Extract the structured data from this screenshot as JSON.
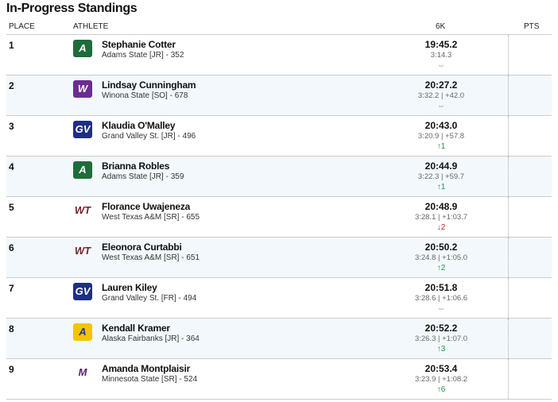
{
  "title": "In-Progress Standings",
  "columns": {
    "place": "PLACE",
    "athlete": "ATHLETE",
    "split": "6K",
    "pts": "PTS"
  },
  "colors": {
    "up": "#1a9a4a",
    "down": "#cc2222",
    "same": "#999999"
  },
  "rows": [
    {
      "place": "1",
      "name": "Stephanie Cotter",
      "team": "Adams State [JR] - 352",
      "time": "19:45.2",
      "split": "3:14.3",
      "move": "⇔",
      "dir": "same",
      "logo": "adams-state-logo"
    },
    {
      "place": "2",
      "name": "Lindsay Cunningham",
      "team": "Winona State [SO] - 678",
      "time": "20:27.2",
      "split": "3:32.2 | +42.0",
      "move": "⇔",
      "dir": "same",
      "logo": "winona-state-logo"
    },
    {
      "place": "3",
      "name": "Klaudia O'Malley",
      "team": "Grand Valley St. [JR] - 496",
      "time": "20:43.0",
      "split": "3:20.9 | +57.8",
      "move": "↑1",
      "dir": "up",
      "logo": "grand-valley-logo"
    },
    {
      "place": "4",
      "name": "Brianna Robles",
      "team": "Adams State [JR] - 359",
      "time": "20:44.9",
      "split": "3:22.3 | +59.7",
      "move": "↑1",
      "dir": "up",
      "logo": "adams-state-logo"
    },
    {
      "place": "5",
      "name": "Florance Uwajeneza",
      "team": "West Texas A&M [SR] - 655",
      "time": "20:48.9",
      "split": "3:28.1 | +1:03.7",
      "move": "↓2",
      "dir": "down",
      "logo": "west-texas-logo"
    },
    {
      "place": "6",
      "name": "Eleonora Curtabbi",
      "team": "West Texas A&M [SR] - 651",
      "time": "20:50.2",
      "split": "3:24.8 | +1:05.0",
      "move": "↑2",
      "dir": "up",
      "logo": "west-texas-logo"
    },
    {
      "place": "7",
      "name": "Lauren Kiley",
      "team": "Grand Valley St. [FR] - 494",
      "time": "20:51.8",
      "split": "3:28.6 | +1:06.6",
      "move": "⇔",
      "dir": "same",
      "logo": "grand-valley-logo"
    },
    {
      "place": "8",
      "name": "Kendall Kramer",
      "team": "Alaska Fairbanks [JR] - 364",
      "time": "20:52.2",
      "split": "3:26.3 | +1:07.0",
      "move": "↑3",
      "dir": "up",
      "logo": "alaska-fairbanks-logo"
    },
    {
      "place": "9",
      "name": "Amanda Montplaisir",
      "team": "Minnesota State [SR] - 524",
      "time": "20:53.4",
      "split": "3:23.9 | +1:08.2",
      "move": "↑6",
      "dir": "up",
      "logo": "minnesota-state-logo"
    }
  ]
}
